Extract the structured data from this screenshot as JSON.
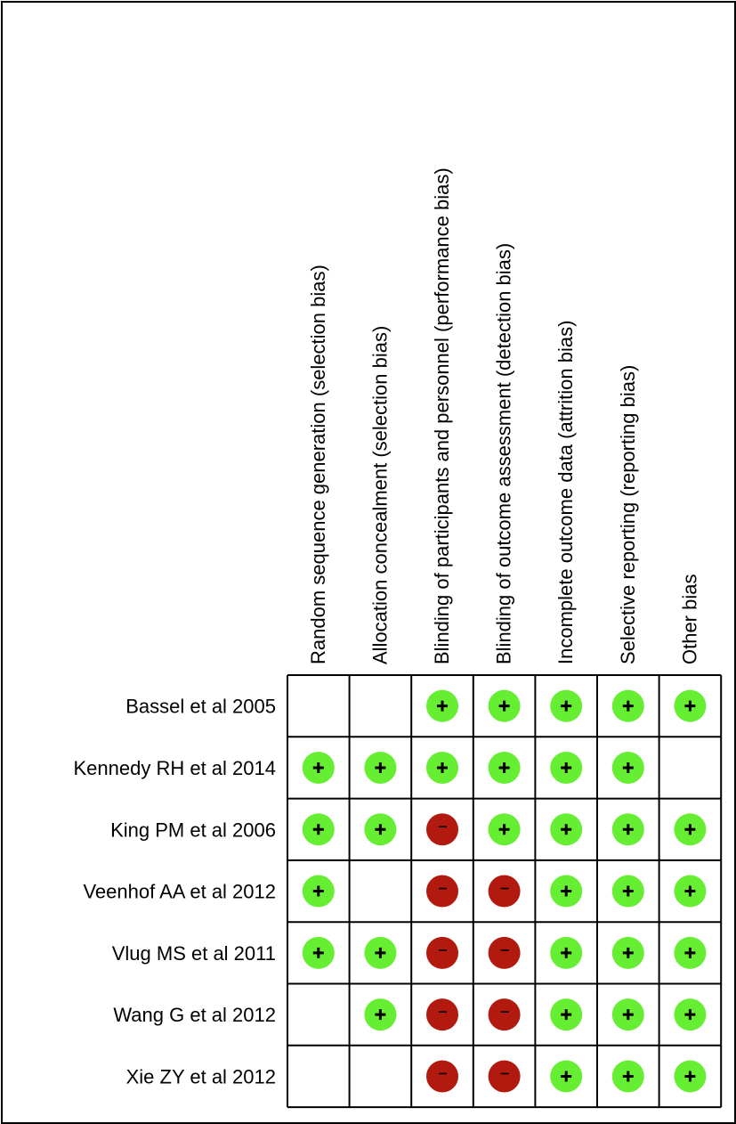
{
  "chart_data": {
    "type": "table",
    "domains": [
      "Random sequence generation (selection bias)",
      "Allocation concealment (selection bias)",
      "Blinding of participants and personnel (performance bias)",
      "Blinding of outcome assessment (detection bias)",
      "Incomplete outcome data (attrition bias)",
      "Selective reporting (reporting bias)",
      "Other bias"
    ],
    "studies": [
      {
        "name": "Bassel et al 2005",
        "ratings": [
          "",
          "",
          "+",
          "+",
          "+",
          "+",
          "+"
        ]
      },
      {
        "name": "Kennedy RH et al 2014",
        "ratings": [
          "+",
          "+",
          "+",
          "+",
          "+",
          "+",
          ""
        ]
      },
      {
        "name": "King PM et al 2006",
        "ratings": [
          "+",
          "+",
          "-",
          "+",
          "+",
          "+",
          "+"
        ]
      },
      {
        "name": "Veenhof AA et al 2012",
        "ratings": [
          "+",
          "",
          "-",
          "-",
          "+",
          "+",
          "+"
        ]
      },
      {
        "name": "Vlug MS et al 2011",
        "ratings": [
          "+",
          "+",
          "-",
          "-",
          "+",
          "+",
          "+"
        ]
      },
      {
        "name": "Wang G et al 2012",
        "ratings": [
          "",
          "+",
          "-",
          "-",
          "+",
          "+",
          "+"
        ]
      },
      {
        "name": "Xie ZY et al 2012",
        "ratings": [
          "",
          "",
          "-",
          "-",
          "+",
          "+",
          "+"
        ]
      }
    ],
    "symbols": {
      "low": "+",
      "high": "−"
    },
    "colors": {
      "low": "#66ee33",
      "high": "#b31a0f",
      "grid": "#000000"
    }
  }
}
